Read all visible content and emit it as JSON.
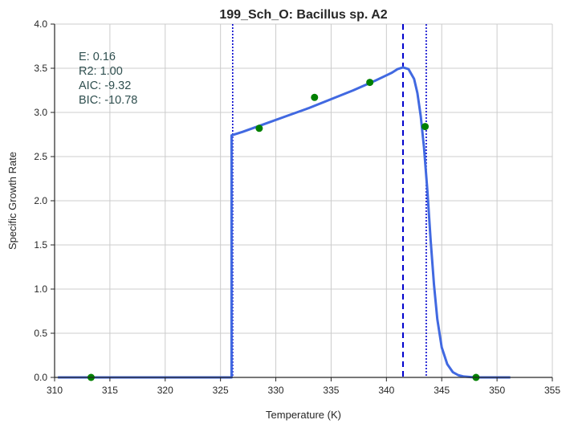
{
  "chart_data": {
    "type": "line",
    "title": "199_Sch_O: Bacillus sp. A2",
    "xlabel": "Temperature (K)",
    "ylabel": "Specific Growth Rate",
    "xlim": [
      310,
      355
    ],
    "ylim": [
      0.0,
      4.0
    ],
    "x_ticks": [
      "310",
      "315",
      "320",
      "325",
      "330",
      "335",
      "340",
      "345",
      "350",
      "355"
    ],
    "y_ticks": [
      "0.0",
      "0.5",
      "1.0",
      "1.5",
      "2.0",
      "2.5",
      "3.0",
      "3.5",
      "4.0"
    ],
    "grid": true,
    "annotations": [
      "E:  0.16",
      "R2:  1.00",
      "AIC: -9.32",
      "BIC: -10.78"
    ],
    "points": {
      "x": [
        313.3,
        328.5,
        333.5,
        338.5,
        343.5,
        348.1
      ],
      "y": [
        0.0,
        2.82,
        3.17,
        3.34,
        2.84,
        0.0
      ],
      "color": "#008000"
    },
    "fit_curve": {
      "color": "#4169e1",
      "x": [
        310.3,
        326.0,
        326.0,
        327,
        329,
        331,
        333,
        335,
        337,
        339,
        340,
        340.5,
        341,
        341.5,
        342,
        342.5,
        342.8,
        343.1,
        343.4,
        343.7,
        344.0,
        344.3,
        344.6,
        345.0,
        345.5,
        346.0,
        346.5,
        347.0,
        348.0,
        349.0,
        351.2
      ],
      "y": [
        0.0,
        0.0,
        2.74,
        2.78,
        2.87,
        2.96,
        3.05,
        3.15,
        3.25,
        3.36,
        3.42,
        3.45,
        3.49,
        3.51,
        3.49,
        3.38,
        3.22,
        2.96,
        2.6,
        2.12,
        1.55,
        1.05,
        0.66,
        0.34,
        0.15,
        0.06,
        0.025,
        0.01,
        0.0,
        0.0,
        0.0
      ]
    },
    "vlines": [
      {
        "x": 326.1,
        "style": "dotted",
        "color": "#0000cd"
      },
      {
        "x": 341.5,
        "style": "dashed",
        "color": "#0000cd"
      },
      {
        "x": 343.6,
        "style": "dotted",
        "color": "#0000cd"
      }
    ]
  }
}
